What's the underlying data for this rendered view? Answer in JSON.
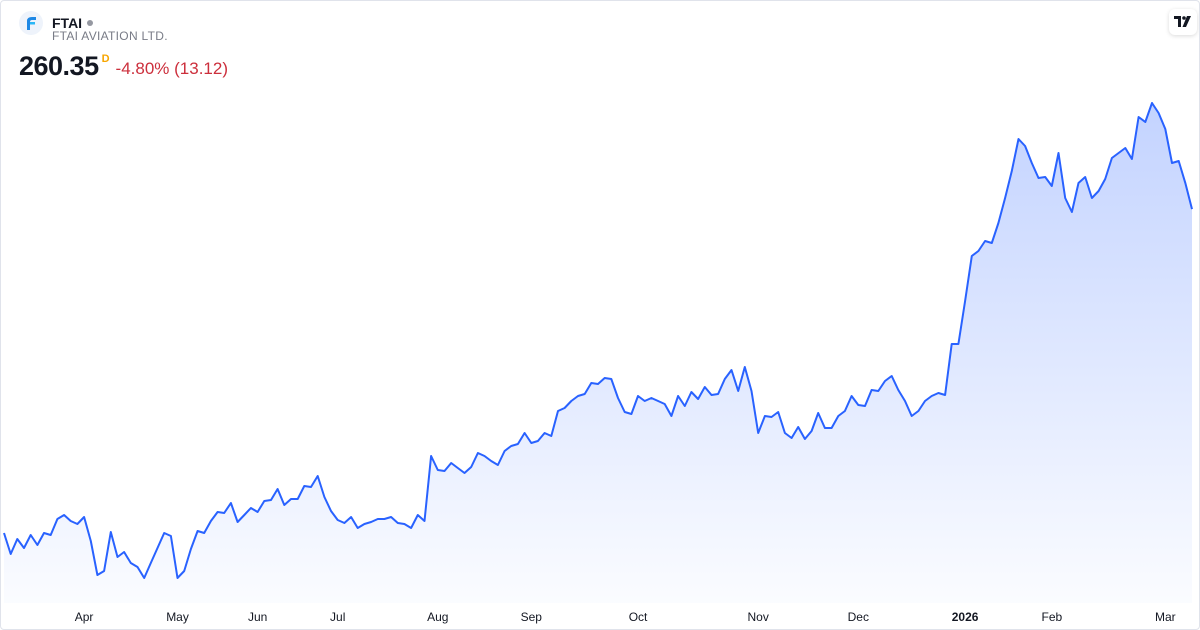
{
  "header": {
    "symbol": "FTAI",
    "name": "FTAI AVIATION LTD.",
    "price": 260.35,
    "interval": "D",
    "change": "-4.80% (13.12)"
  },
  "chart_data": {
    "type": "line",
    "series": [
      {
        "color": "#2962ff",
        "values": [
          98.4,
          87.9,
          95.4,
          90.9,
          97.4,
          92.4,
          98.4,
          97.4,
          105.4,
          107.4,
          104.4,
          102.9,
          106.4,
          94.4,
          77.4,
          79.4,
          98.9,
          86.4,
          88.9,
          83.4,
          81.4,
          75.9,
          83.4,
          90.9,
          98.4,
          96.9,
          75.9,
          79.4,
          90.4,
          99.4,
          98.4,
          104.4,
          108.9,
          108.4,
          113.4,
          103.9,
          107.4,
          110.9,
          108.9,
          114.4,
          114.9,
          120.4,
          112.4,
          115.4,
          115.4,
          121.9,
          121.4,
          126.9,
          116.4,
          109.4,
          104.9,
          103.4,
          106.4,
          100.9,
          102.9,
          103.9,
          105.4,
          105.4,
          106.4,
          103.4,
          102.9,
          100.9,
          107.4,
          104.4,
          136.9,
          129.9,
          129.4,
          133.4,
          130.9,
          128.4,
          131.4,
          138.4,
          136.9,
          134.4,
          132.4,
          139.4,
          141.9,
          142.9,
          148.4,
          143.4,
          144.4,
          148.4,
          146.9,
          159.4,
          160.9,
          164.4,
          166.9,
          167.9,
          173.4,
          172.9,
          175.9,
          175.4,
          165.9,
          158.9,
          157.9,
          166.9,
          164.4,
          165.9,
          164.4,
          162.9,
          156.9,
          166.9,
          161.9,
          168.9,
          165.4,
          171.4,
          167.4,
          167.9,
          175.4,
          179.9,
          169.4,
          181.4,
          169.4,
          148.4,
          156.9,
          156.4,
          158.9,
          148.4,
          145.9,
          151.4,
          145.4,
          149.4,
          158.4,
          150.9,
          150.9,
          156.9,
          159.4,
          166.9,
          162.4,
          161.9,
          169.9,
          169.4,
          174.4,
          176.9,
          169.9,
          164.4,
          156.9,
          159.4,
          164.4,
          166.9,
          168.4,
          167.4,
          192.9,
          192.9,
          214.4,
          236.9,
          239.4,
          244.4,
          243.4,
          253.4,
          265.9,
          279.4,
          295.4,
          291.9,
          283.4,
          275.9,
          276.4,
          271.9,
          288.4,
          265.9,
          258.9,
          273.4,
          276.4,
          265.9,
          269.4,
          275.4,
          285.9,
          288.4,
          290.9,
          285.4,
          306.4,
          303.9,
          313.4,
          308.4,
          300.4,
          283.4,
          284.4,
          273.47,
          260.35
        ]
      }
    ],
    "xticks": [
      {
        "value": 12,
        "label": "Apr"
      },
      {
        "value": 26,
        "label": "May"
      },
      {
        "value": 38,
        "label": "Jun"
      },
      {
        "value": 50,
        "label": "Jul"
      },
      {
        "value": 65,
        "label": "Aug"
      },
      {
        "value": 79,
        "label": "Sep"
      },
      {
        "value": 95,
        "label": "Oct"
      },
      {
        "value": 113,
        "label": "Nov"
      },
      {
        "value": 128,
        "label": "Dec"
      },
      {
        "value": 144,
        "label": "2026",
        "bold": true
      },
      {
        "value": 157,
        "label": "Feb"
      },
      {
        "value": 174,
        "label": "Mar"
      }
    ]
  }
}
